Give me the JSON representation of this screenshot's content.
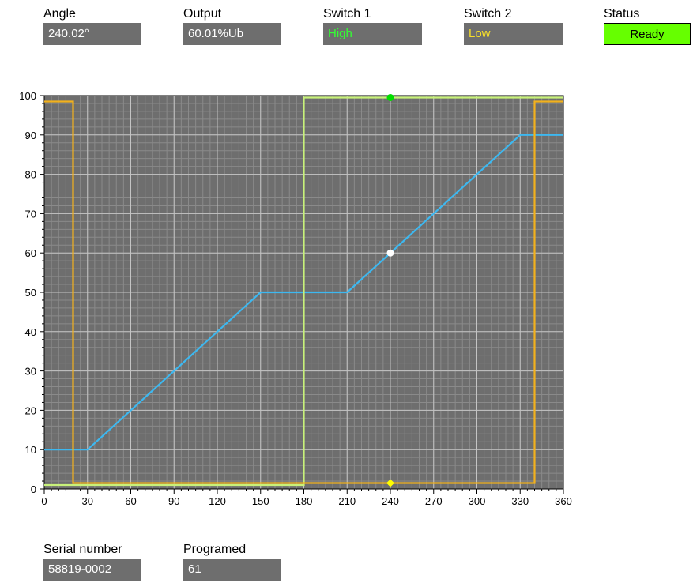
{
  "readouts": {
    "angle": {
      "label": "Angle",
      "value": "240.02°"
    },
    "output": {
      "label": "Output",
      "value": "60.01%Ub"
    },
    "switch1": {
      "label": "Switch 1",
      "value": "High"
    },
    "switch2": {
      "label": "Switch 2",
      "value": "Low"
    },
    "status": {
      "label": "Status",
      "value": "Ready"
    }
  },
  "footer": {
    "serial": {
      "label": "Serial number",
      "value": "58819-0002"
    },
    "programmed": {
      "label": "Programed",
      "value": "61"
    }
  },
  "colors": {
    "plot_bg": "#6e6e6e",
    "output_curve": "#3db8f0",
    "switch1_curve": "#c8f27a",
    "switch2_curve": "#f2b11d",
    "switch1_text": "#33ff33",
    "switch2_text": "#f7df2a",
    "status_bg": "#66ff00"
  },
  "chart_data": {
    "type": "line",
    "xlim": [
      0,
      360
    ],
    "ylim": [
      0,
      100
    ],
    "xticks": [
      0,
      30,
      60,
      90,
      120,
      150,
      180,
      210,
      240,
      270,
      300,
      330,
      360
    ],
    "yticks": [
      0,
      10,
      20,
      30,
      40,
      50,
      60,
      70,
      80,
      90,
      100
    ],
    "grid": true,
    "series": [
      {
        "key": "output",
        "color": "#3db8f0",
        "x": [
          0,
          30,
          150,
          210,
          330,
          360
        ],
        "y": [
          10,
          10,
          50,
          50,
          90,
          90
        ]
      },
      {
        "key": "switch1",
        "color": "#c8f27a",
        "x": [
          0,
          180,
          180,
          360
        ],
        "y": [
          1,
          1,
          99.5,
          99.5
        ]
      },
      {
        "key": "switch2",
        "color": "#f2b11d",
        "x": [
          0,
          20,
          20,
          340,
          340,
          360
        ],
        "y": [
          98.5,
          98.5,
          1.5,
          1.5,
          98.5,
          98.5
        ]
      }
    ],
    "markers": [
      {
        "key": "output-cursor",
        "x": 240,
        "y": 60,
        "color": "#ffffff",
        "shape": "circle"
      },
      {
        "key": "switch1-cursor",
        "x": 240,
        "y": 99.5,
        "color": "#00dd00",
        "shape": "circle"
      },
      {
        "key": "switch2-cursor",
        "x": 240,
        "y": 1.5,
        "color": "#ffff00",
        "shape": "diamond"
      }
    ]
  }
}
